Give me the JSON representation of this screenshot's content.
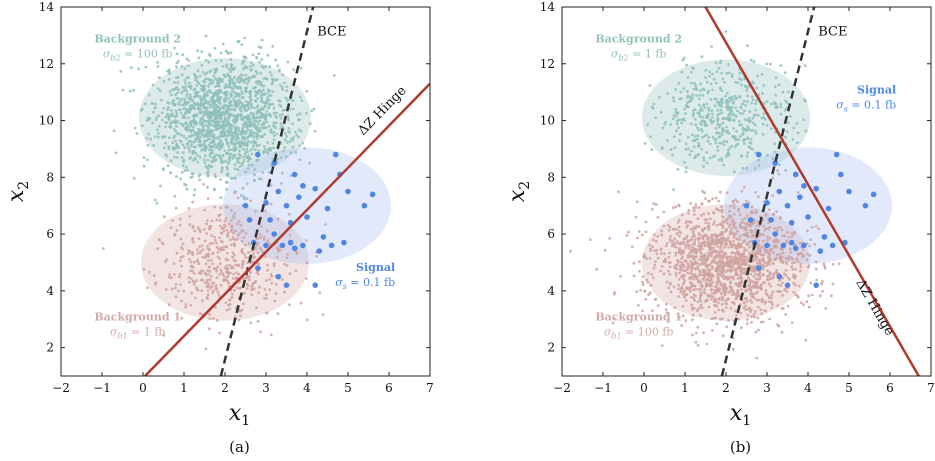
{
  "colors": {
    "bg2_fill": "#9cc7c4",
    "bg2_point": "#8fbfbb",
    "bg2_text": "#93c1bd",
    "bg1_fill": "#d9b3b0",
    "bg1_point": "#cfa3a0",
    "bg1_text": "#d2aaa6",
    "signal_fill": "#a9bff3",
    "signal_point": "#4f86e6",
    "signal_text": "#4f86e6",
    "hinge_line": "#b03a2e",
    "bce_line": "#333333"
  },
  "chart_data": [
    {
      "type": "scatter",
      "caption": "(a)",
      "xlabel": "x",
      "xlabel_sub": "1",
      "ylabel": "x",
      "ylabel_sub": "2",
      "xlim": [
        -2,
        7
      ],
      "ylim": [
        1,
        14
      ],
      "xticks": [
        "−2",
        "−1",
        "0",
        "1",
        "2",
        "3",
        "4",
        "5",
        "6",
        "7"
      ],
      "yticks": [
        "2",
        "4",
        "6",
        "8",
        "10",
        "12",
        "14"
      ],
      "regions": [
        {
          "key": "bg2",
          "name": "Background 2",
          "sigma_label": "σ_{b2} = 100 fb",
          "sigma_sym": "σ",
          "sigma_sub": "b2",
          "sigma_rest": " = 100 fb",
          "center": [
            2.0,
            10.1
          ],
          "radius": 2.1
        },
        {
          "key": "bg1",
          "name": "Background 1",
          "sigma_label": "σ_{b1} = 1 fb",
          "sigma_sym": "σ",
          "sigma_sub": "b1",
          "sigma_rest": " = 1 fb",
          "center": [
            2.0,
            5.0
          ],
          "radius": 2.05
        },
        {
          "key": "signal",
          "name": "Signal",
          "sigma_label": "σ_s = 0.1 fb",
          "sigma_sym": "σ",
          "sigma_sub": "s",
          "sigma_rest": " = 0.1 fb",
          "center": [
            4.0,
            7.0
          ],
          "radius": 2.05
        }
      ],
      "lines": [
        {
          "key": "bce",
          "label": "BCE",
          "style": "dashed",
          "from": [
            1.9,
            1.0
          ],
          "to": [
            4.15,
            14.0
          ]
        },
        {
          "key": "hinge",
          "label": "ΔZ Hinge",
          "style": "solid",
          "from": [
            0.05,
            1.0
          ],
          "to": [
            7.0,
            11.3
          ]
        }
      ],
      "populations": [
        {
          "key": "bg2",
          "count": 1600,
          "mean": [
            2.0,
            10.1
          ],
          "sd": [
            0.85,
            1.05
          ]
        },
        {
          "key": "bg1",
          "count": 500,
          "mean": [
            2.0,
            5.0
          ],
          "sd": [
            0.8,
            0.95
          ]
        }
      ],
      "signal_points": [
        [
          2.8,
          8.8
        ],
        [
          3.2,
          8.5
        ],
        [
          3.5,
          7.0
        ],
        [
          3.7,
          8.1
        ],
        [
          3.9,
          7.7
        ],
        [
          3.3,
          7.5
        ],
        [
          3.8,
          7.3
        ],
        [
          4.0,
          6.6
        ],
        [
          4.2,
          7.6
        ],
        [
          4.5,
          6.9
        ],
        [
          4.7,
          8.8
        ],
        [
          4.8,
          8.1
        ],
        [
          5.0,
          7.5
        ],
        [
          5.4,
          7.0
        ],
        [
          5.6,
          7.4
        ],
        [
          4.3,
          5.4
        ],
        [
          4.4,
          5.9
        ],
        [
          4.6,
          5.6
        ],
        [
          4.9,
          5.7
        ],
        [
          3.1,
          6.5
        ],
        [
          3.6,
          5.7
        ],
        [
          3.9,
          5.6
        ],
        [
          3.2,
          6.0
        ],
        [
          2.6,
          6.5
        ],
        [
          2.7,
          5.7
        ],
        [
          3.0,
          5.6
        ],
        [
          3.4,
          5.6
        ],
        [
          3.7,
          5.5
        ],
        [
          2.8,
          4.8
        ],
        [
          3.3,
          4.5
        ],
        [
          3.5,
          4.2
        ],
        [
          4.2,
          4.2
        ],
        [
          2.5,
          7.0
        ],
        [
          3.0,
          7.1
        ],
        [
          3.6,
          6.4
        ]
      ]
    },
    {
      "type": "scatter",
      "caption": "(b)",
      "xlabel": "x",
      "xlabel_sub": "1",
      "ylabel": "x",
      "ylabel_sub": "2",
      "xlim": [
        -2,
        7
      ],
      "ylim": [
        1,
        14
      ],
      "xticks": [
        "−2",
        "−1",
        "0",
        "1",
        "2",
        "3",
        "4",
        "5",
        "6",
        "7"
      ],
      "yticks": [
        "2",
        "4",
        "6",
        "8",
        "10",
        "12",
        "14"
      ],
      "regions": [
        {
          "key": "bg2",
          "name": "Background 2",
          "sigma_label": "σ_{b2} = 1 fb",
          "sigma_sym": "σ",
          "sigma_sub": "b2",
          "sigma_rest": " = 1 fb",
          "center": [
            2.0,
            10.1
          ],
          "radius": 2.05
        },
        {
          "key": "bg1",
          "name": "Background 1",
          "sigma_label": "σ_{b1} = 100 fb",
          "sigma_sym": "σ",
          "sigma_sub": "b1",
          "sigma_rest": " = 100 fb",
          "center": [
            2.0,
            5.0
          ],
          "radius": 2.05
        },
        {
          "key": "signal",
          "name": "Signal",
          "sigma_label": "σ_s = 0.1 fb",
          "sigma_sym": "σ",
          "sigma_sub": "s",
          "sigma_rest": " = 0.1 fb",
          "center": [
            4.0,
            7.0
          ],
          "radius": 2.05
        }
      ],
      "lines": [
        {
          "key": "bce",
          "label": "BCE",
          "style": "dashed",
          "from": [
            1.9,
            1.0
          ],
          "to": [
            4.15,
            14.0
          ]
        },
        {
          "key": "hinge",
          "label": "ΔZ Hinge",
          "style": "solid",
          "from": [
            1.5,
            14.0
          ],
          "to": [
            6.7,
            1.0
          ]
        }
      ],
      "populations": [
        {
          "key": "bg2",
          "count": 500,
          "mean": [
            2.0,
            10.1
          ],
          "sd": [
            0.8,
            0.95
          ]
        },
        {
          "key": "bg1",
          "count": 1600,
          "mean": [
            2.0,
            5.0
          ],
          "sd": [
            0.95,
            1.0
          ]
        }
      ],
      "signal_points": [
        [
          2.8,
          8.8
        ],
        [
          3.2,
          8.5
        ],
        [
          3.5,
          7.0
        ],
        [
          3.7,
          8.1
        ],
        [
          3.9,
          7.7
        ],
        [
          3.3,
          7.5
        ],
        [
          3.8,
          7.3
        ],
        [
          4.0,
          6.6
        ],
        [
          4.2,
          7.6
        ],
        [
          4.5,
          6.9
        ],
        [
          4.7,
          8.8
        ],
        [
          4.8,
          8.1
        ],
        [
          5.0,
          7.5
        ],
        [
          5.4,
          7.0
        ],
        [
          5.6,
          7.4
        ],
        [
          4.3,
          5.4
        ],
        [
          4.4,
          5.9
        ],
        [
          4.6,
          5.6
        ],
        [
          4.9,
          5.7
        ],
        [
          3.1,
          6.5
        ],
        [
          3.6,
          5.7
        ],
        [
          3.9,
          5.6
        ],
        [
          3.2,
          6.0
        ],
        [
          2.6,
          6.5
        ],
        [
          2.7,
          5.7
        ],
        [
          3.0,
          5.6
        ],
        [
          3.4,
          5.6
        ],
        [
          3.7,
          5.5
        ],
        [
          2.8,
          4.8
        ],
        [
          3.3,
          4.5
        ],
        [
          3.5,
          4.2
        ],
        [
          4.2,
          4.2
        ],
        [
          2.5,
          7.0
        ],
        [
          3.0,
          7.1
        ],
        [
          3.6,
          6.4
        ]
      ]
    }
  ]
}
